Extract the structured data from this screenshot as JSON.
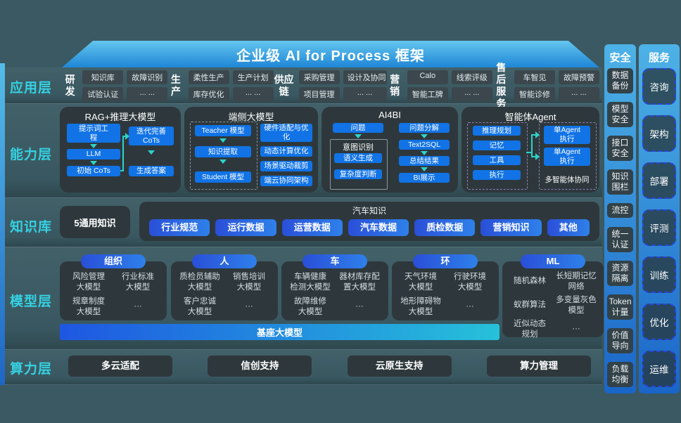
{
  "title": "企业级 AI for Process 框架",
  "layers": [
    "应用层",
    "能力层",
    "知识库",
    "模型层",
    "算力层"
  ],
  "colors": {
    "background": "#3a5962",
    "accent_blue": "#1173e6",
    "arrow_cyan": "#2ed3c8",
    "layer_label_cyan": "#35d1e2",
    "pill_gradient": [
      "#2a4fd8",
      "#2e80ea"
    ],
    "base_bar_gradient": [
      "#1e57e2",
      "#26c1da"
    ],
    "column_gradient": [
      "#4db2e6",
      "#1a65c8"
    ]
  },
  "app": {
    "groups": [
      {
        "name": "研发",
        "items": [
          "知识库",
          "故障识别",
          "试验认证",
          "... ..."
        ]
      },
      {
        "name": "生产",
        "items": [
          "柔性生产",
          "生产计划",
          "库存优化",
          "... ..."
        ]
      },
      {
        "name": "供应链",
        "items": [
          "采购管理",
          "设计及协同",
          "项目管理",
          "... ..."
        ]
      },
      {
        "name": "营销",
        "items": [
          "Calo",
          "线索评级",
          "智能工牌",
          "... ..."
        ]
      },
      {
        "name": "售后服务",
        "items": [
          "车智见",
          "故障预警",
          "智能诊修",
          "... ..."
        ]
      }
    ]
  },
  "capability": {
    "rag": {
      "title": "RAG+推理大模型",
      "flow_left": [
        "提示词工\n程",
        "LLM",
        "初始 CoTs"
      ],
      "flow_right": [
        "迭代完善\nCoTs",
        "生成答案"
      ]
    },
    "edge": {
      "title": "端侧大模型",
      "distill": [
        "Teacher 模型",
        "知识提取",
        "Student 模型"
      ],
      "right": [
        "硬件适配与优\n化",
        "动态计算优化",
        "场景驱动裁剪",
        "端云协同架构"
      ]
    },
    "ai4bi": {
      "title": "AI4BI",
      "q": "问题",
      "intent_title": "意图识别",
      "intent_items": [
        "语义生成",
        "复杂度判断"
      ],
      "right": [
        "问题分解",
        "Text2SQL",
        "总结结果",
        "BI展示"
      ]
    },
    "agent": {
      "title": "智能体Agent",
      "left": [
        "推理规划",
        "记忆",
        "工具",
        "执行"
      ],
      "right": [
        "单Agent\n执行",
        "单Agent\n执行"
      ],
      "caption": "多智能体协同"
    }
  },
  "knowledge": {
    "general": "5通用知识",
    "auto_title": "汽车知识",
    "pills": [
      "行业规范",
      "运行数据",
      "运营数据",
      "汽车数据",
      "质检数据",
      "营销知识",
      "其他"
    ]
  },
  "model": {
    "groups": [
      {
        "name": "组织",
        "items": [
          "风险管理\n大模型",
          "行业标准\n大模型",
          "规章制度\n大模型",
          "···"
        ]
      },
      {
        "name": "人",
        "items": [
          "质检员辅助\n大模型",
          "销售培训\n大模型",
          "客户忠诚\n大模型",
          "···"
        ]
      },
      {
        "name": "车",
        "items": [
          "车辆健康\n检测大模型",
          "器材库存配\n置大模型",
          "故障维修\n大模型",
          "···"
        ]
      },
      {
        "name": "环",
        "items": [
          "天气环境\n大模型",
          "行驶环境\n大模型",
          "地形障碍物\n大模型",
          "···"
        ]
      },
      {
        "name": "ML",
        "items": [
          "随机森林",
          "长短期记忆\n网络",
          "蚁群算法",
          "多变量灰色\n模型",
          "近似动态\n规划",
          "···"
        ]
      }
    ],
    "base": "基座大模型"
  },
  "compute": {
    "items": [
      "多云适配",
      "信创支持",
      "云原生支持",
      "算力管理"
    ]
  },
  "security": {
    "title": "安全",
    "items": [
      "数据\n备份",
      "模型\n安全",
      "接口\n安全",
      "知识\n围栏",
      "流控",
      "统一\n认证",
      "资源\n隔离",
      "Token\n计量",
      "价值\n导向",
      "负载\n均衡"
    ]
  },
  "service": {
    "title": "服务",
    "items": [
      "咨询",
      "架构",
      "部署",
      "评测",
      "训练",
      "优化",
      "运维"
    ]
  }
}
